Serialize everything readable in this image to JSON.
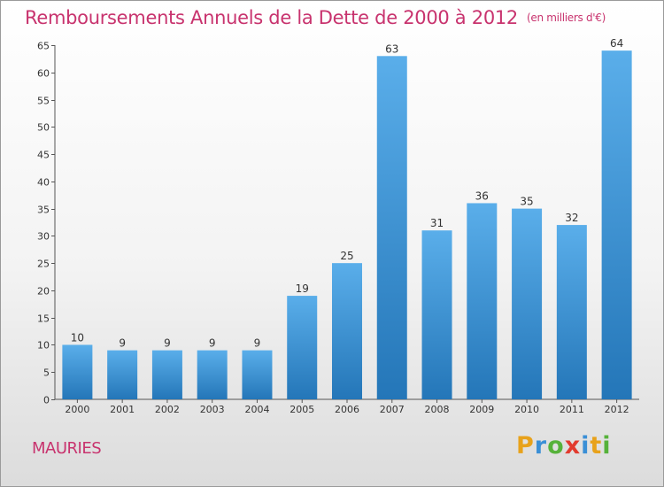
{
  "title": "Remboursements Annuels de la Dette de 2000 à 2012",
  "unit_note": "(en milliers d'€)",
  "commune": "MAURIES",
  "logo": {
    "letters": [
      "P",
      "r",
      "o",
      "x",
      "i",
      "t",
      "i"
    ],
    "colors": [
      "#e8a21b",
      "#3a8fd6",
      "#56b23a",
      "#e23b2e",
      "#3a8fd6",
      "#e8a21b",
      "#56b23a"
    ]
  },
  "colors": {
    "accent": "#c8336e",
    "bar_light": "#5aaeea",
    "bar_dark": "#2476b8"
  },
  "chart_data": {
    "type": "bar",
    "categories": [
      "2000",
      "2001",
      "2002",
      "2003",
      "2004",
      "2005",
      "2006",
      "2007",
      "2008",
      "2009",
      "2010",
      "2011",
      "2012"
    ],
    "values": [
      10,
      9,
      9,
      9,
      9,
      19,
      25,
      63,
      31,
      36,
      35,
      32,
      64
    ],
    "title": "Remboursements Annuels de la Dette de 2000 à 2012",
    "ylim": [
      0,
      65
    ],
    "yticks": [
      0,
      5,
      10,
      15,
      20,
      25,
      30,
      35,
      40,
      45,
      50,
      55,
      60,
      65
    ],
    "grid": false,
    "data_labels": true
  }
}
